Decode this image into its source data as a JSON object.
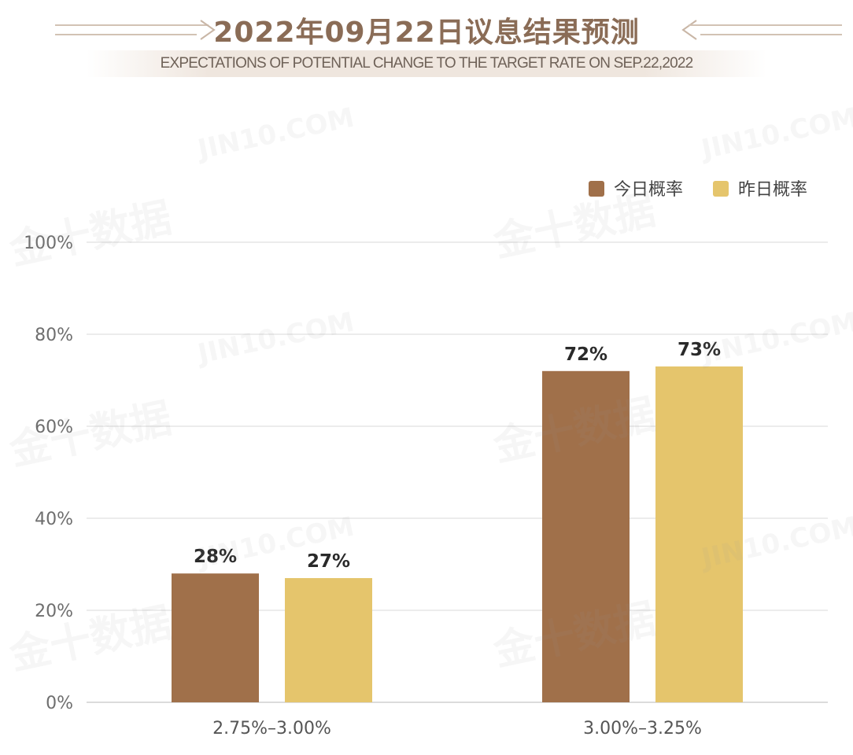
{
  "header": {
    "title": "2022年09月22日议息结果预测",
    "subtitle": "EXPECTATIONS OF POTENTIAL CHANGE TO THE TARGET RATE ON SEP.22,2022"
  },
  "watermarks": {
    "site": "JIN10.COM",
    "brand": "金十数据"
  },
  "chart_data": {
    "type": "bar",
    "categories": [
      "2.75%–3.00%",
      "3.00%–3.25%"
    ],
    "series": [
      {
        "name": "今日概率",
        "values": [
          28,
          72
        ],
        "color": "#a0704a"
      },
      {
        "name": "昨日概率",
        "values": [
          27,
          73
        ],
        "color": "#e5c56c"
      }
    ],
    "ylim": [
      0,
      100
    ],
    "yticks": [
      "0%",
      "20%",
      "40%",
      "60%",
      "80%",
      "100%"
    ],
    "value_suffix": "%",
    "grid": true,
    "legend_position": "top-right"
  }
}
